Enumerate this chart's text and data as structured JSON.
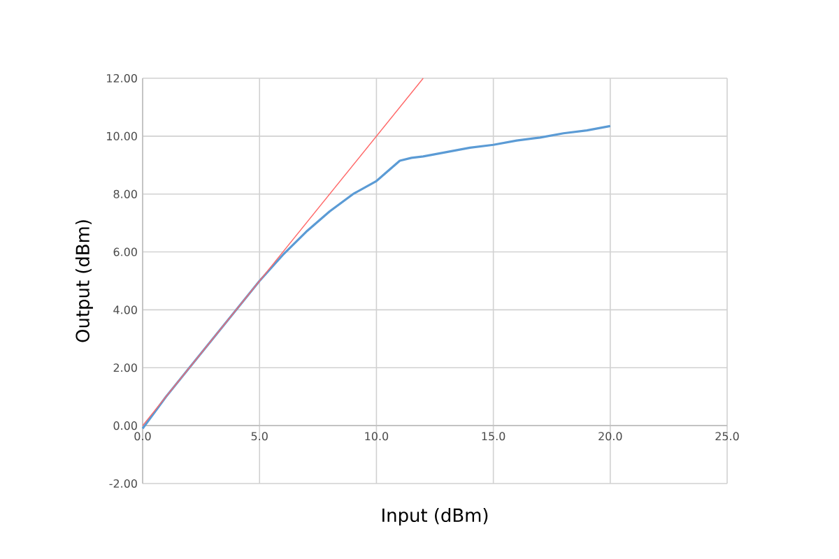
{
  "chart_data": {
    "type": "line",
    "xlabel": "Input (dBm)",
    "ylabel": "Output (dBm)",
    "xlim": [
      0,
      25
    ],
    "ylim": [
      -2,
      12
    ],
    "xticks": [
      {
        "value": 0,
        "label": "0.0"
      },
      {
        "value": 5,
        "label": "5.0"
      },
      {
        "value": 10,
        "label": "10.0"
      },
      {
        "value": 15,
        "label": "15.0"
      },
      {
        "value": 20,
        "label": "20.0"
      },
      {
        "value": 25,
        "label": "25.0"
      }
    ],
    "yticks": [
      {
        "value": -2,
        "label": "-2.00"
      },
      {
        "value": 0,
        "label": "0.00"
      },
      {
        "value": 2,
        "label": "2.00"
      },
      {
        "value": 4,
        "label": "4.00"
      },
      {
        "value": 6,
        "label": "6.00"
      },
      {
        "value": 8,
        "label": "8.00"
      },
      {
        "value": 10,
        "label": "10.00"
      },
      {
        "value": 12,
        "label": "12.00"
      }
    ],
    "grid": true,
    "marker": "none",
    "series": [
      {
        "color": "#5b9bd5",
        "x": [
          0,
          1,
          2,
          3,
          4,
          5,
          6,
          7,
          8,
          9,
          10,
          10.5,
          11,
          11.5,
          12,
          13,
          14,
          15,
          16,
          17,
          18,
          19,
          20
        ],
        "values": [
          -0.1,
          1,
          2,
          3,
          4,
          5,
          5.9,
          6.7,
          7.4,
          8,
          8.45,
          8.8,
          9.15,
          9.25,
          9.3,
          9.45,
          9.6,
          9.7,
          9.85,
          9.95,
          10.1,
          10.2,
          10.35
        ]
      },
      {
        "color": "#ff6666",
        "x": [
          0,
          12
        ],
        "values": [
          0,
          12
        ]
      }
    ]
  }
}
